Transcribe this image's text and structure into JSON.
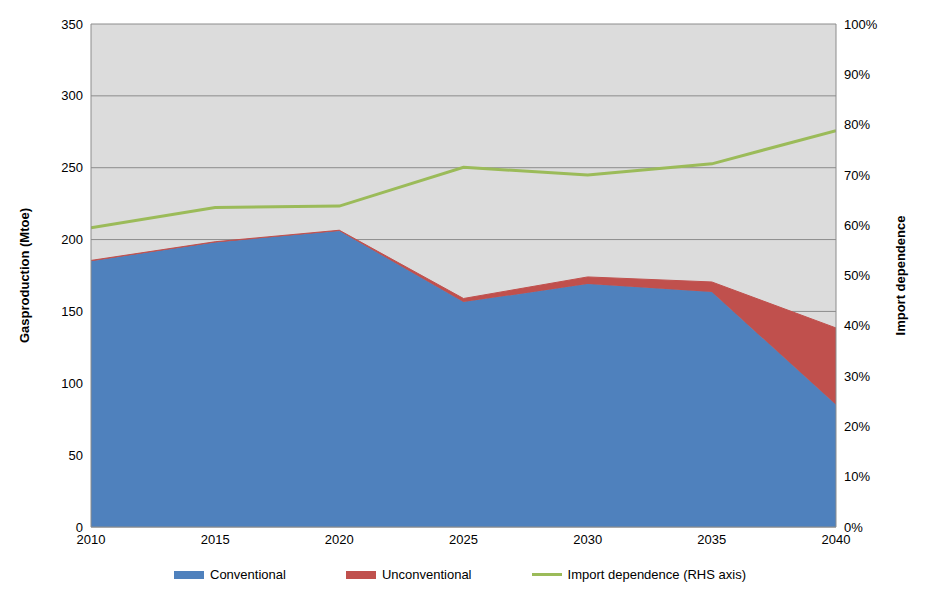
{
  "chart_data": {
    "type": "area",
    "x": [
      2010,
      2015,
      2020,
      2025,
      2030,
      2035,
      2040
    ],
    "series": [
      {
        "name": "Conventional",
        "color": "#4f81bd",
        "type": "area",
        "values": [
          185,
          198,
          206,
          156.5,
          169,
          163.5,
          85
        ]
      },
      {
        "name": "Unconventional",
        "color": "#c0504d",
        "type": "area",
        "values": [
          0.5,
          0.5,
          0.5,
          2.5,
          5,
          7,
          53.5
        ]
      },
      {
        "name": "Import dependence (RHS axis)",
        "color": "#9bbb59",
        "type": "line",
        "axis": "y2",
        "values": [
          59.5,
          63.5,
          63.8,
          71.5,
          70,
          72.2,
          78.8
        ]
      }
    ],
    "stacked": true,
    "xlim": [
      2010,
      2040
    ],
    "xticks": [
      2010,
      2015,
      2020,
      2025,
      2030,
      2035,
      2040
    ],
    "ylim": [
      0,
      350
    ],
    "yticks": [
      0,
      50,
      100,
      150,
      200,
      250,
      300,
      350
    ],
    "y2lim": [
      0,
      100
    ],
    "y2ticks": [
      {
        "value": 0,
        "label": "0%"
      },
      {
        "value": 10,
        "label": "10%"
      },
      {
        "value": 20,
        "label": "20%"
      },
      {
        "value": 30,
        "label": "30%"
      },
      {
        "value": 40,
        "label": "40%"
      },
      {
        "value": 50,
        "label": "50%"
      },
      {
        "value": 60,
        "label": "60%"
      },
      {
        "value": 70,
        "label": "70%"
      },
      {
        "value": 80,
        "label": "80%"
      },
      {
        "value": 90,
        "label": "90%"
      },
      {
        "value": 100,
        "label": "100%"
      }
    ],
    "ylabel": "Gasproduction (Mtoe)",
    "y2label": "Import dependence",
    "grid": true,
    "legend": "bottom"
  }
}
